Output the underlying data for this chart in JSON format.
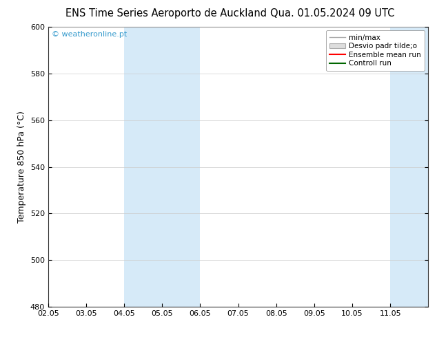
{
  "title_left": "ENS Time Series Aeroporto de Auckland",
  "title_right": "Qua. 01.05.2024 09 UTC",
  "ylabel": "Temperature 850 hPa (°C)",
  "ylim": [
    480,
    600
  ],
  "yticks": [
    480,
    500,
    520,
    540,
    560,
    580,
    600
  ],
  "xtick_labels": [
    "02.05",
    "03.05",
    "04.05",
    "05.05",
    "06.05",
    "07.05",
    "08.05",
    "09.05",
    "10.05",
    "11.05"
  ],
  "xtick_positions": [
    0,
    1,
    2,
    3,
    4,
    5,
    6,
    7,
    8,
    9
  ],
  "xlim": [
    0,
    10
  ],
  "shaded_bands": [
    {
      "xstart": 2,
      "xend": 4
    },
    {
      "xstart": 9,
      "xend": 10
    }
  ],
  "band_color": "#d6eaf8",
  "background_color": "#ffffff",
  "plot_bg_color": "#ffffff",
  "watermark": "© weatheronline.pt",
  "watermark_color": "#3399cc",
  "legend_items": [
    {
      "label": "min/max",
      "type": "line",
      "color": "#aaaaaa",
      "lw": 1.0
    },
    {
      "label": "Desvio padr tilde;o",
      "type": "box",
      "facecolor": "#dddddd",
      "edgecolor": "#aaaaaa"
    },
    {
      "label": "Ensemble mean run",
      "type": "line",
      "color": "#ff0000",
      "lw": 1.5
    },
    {
      "label": "Controll run",
      "type": "line",
      "color": "#006600",
      "lw": 1.5
    }
  ],
  "title_fontsize": 10.5,
  "tick_fontsize": 8,
  "ylabel_fontsize": 9,
  "legend_fontsize": 7.5
}
